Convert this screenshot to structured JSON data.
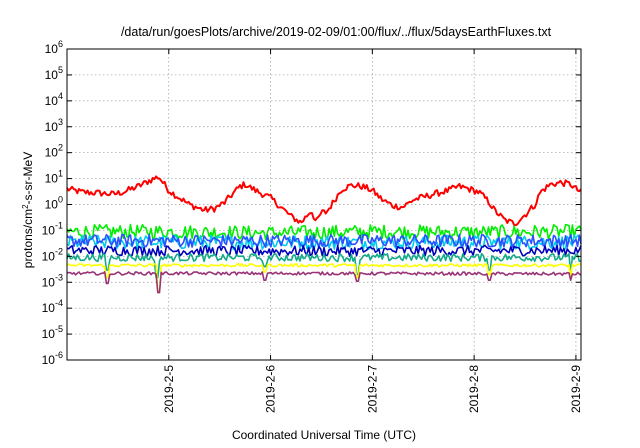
{
  "chart_data": {
    "type": "line",
    "title": "/data/run/goesPlots/archive/2019-02-09/01:00/flux/../flux/5daysEarthFluxes.txt",
    "xlabel": "Coordinated Universal Time (UTC)",
    "ylabel": "protons/cm²-s-sr-MeV",
    "yscale": "log",
    "ylim": [
      1e-06,
      1000000.0
    ],
    "xlim": [
      0,
      5.05
    ],
    "grid": true,
    "yticks": [
      {
        "value": 1e-06,
        "base": "10",
        "exp": "-6"
      },
      {
        "value": 1e-05,
        "base": "10",
        "exp": "-5"
      },
      {
        "value": 0.0001,
        "base": "10",
        "exp": "-4"
      },
      {
        "value": 0.001,
        "base": "10",
        "exp": "-3"
      },
      {
        "value": 0.01,
        "base": "10",
        "exp": "-2"
      },
      {
        "value": 0.1,
        "base": "10",
        "exp": "-1"
      },
      {
        "value": 1,
        "base": "10",
        "exp": "0"
      },
      {
        "value": 10,
        "base": "10",
        "exp": "1"
      },
      {
        "value": 100,
        "base": "10",
        "exp": "2"
      },
      {
        "value": 1000,
        "base": "10",
        "exp": "3"
      },
      {
        "value": 10000.0,
        "base": "10",
        "exp": "4"
      },
      {
        "value": 100000.0,
        "base": "10",
        "exp": "5"
      },
      {
        "value": 1000000.0,
        "base": "10",
        "exp": "6"
      }
    ],
    "xticks": [
      {
        "value": 1.0,
        "label": "2019-2-5"
      },
      {
        "value": 2.0,
        "label": "2019-2-6"
      },
      {
        "value": 3.0,
        "label": "2019-2-7"
      },
      {
        "value": 4.0,
        "label": "2019-2-8"
      },
      {
        "value": 5.0,
        "label": "2019-2-9"
      }
    ],
    "series": [
      {
        "color": "#ff0000",
        "base_points": [
          [
            0,
            4
          ],
          [
            0.15,
            3
          ],
          [
            0.3,
            2.8
          ],
          [
            0.45,
            2.5
          ],
          [
            0.55,
            3
          ],
          [
            0.7,
            5
          ],
          [
            0.8,
            8
          ],
          [
            0.9,
            12
          ],
          [
            1.0,
            3.5
          ],
          [
            1.2,
            1.0
          ],
          [
            1.35,
            0.6
          ],
          [
            1.45,
            0.7
          ],
          [
            1.55,
            1.2
          ],
          [
            1.6,
            2.0
          ],
          [
            1.7,
            5
          ],
          [
            1.75,
            6
          ],
          [
            1.85,
            3.5
          ],
          [
            2.0,
            1.8
          ],
          [
            2.1,
            0.8
          ],
          [
            2.2,
            0.35
          ],
          [
            2.3,
            0.2
          ],
          [
            2.4,
            0.6
          ],
          [
            2.45,
            0.2
          ],
          [
            2.5,
            0.5
          ],
          [
            2.55,
            0.5
          ],
          [
            2.65,
            2
          ],
          [
            2.7,
            4
          ],
          [
            2.8,
            5.5
          ],
          [
            2.9,
            5
          ],
          [
            3.0,
            3.5
          ],
          [
            3.1,
            1.5
          ],
          [
            3.2,
            0.9
          ],
          [
            3.3,
            0.8
          ],
          [
            3.4,
            1.5
          ],
          [
            3.6,
            2.5
          ],
          [
            3.75,
            3.5
          ],
          [
            3.85,
            5
          ],
          [
            3.95,
            4
          ],
          [
            4.05,
            3
          ],
          [
            4.15,
            1.2
          ],
          [
            4.2,
            0.6
          ],
          [
            4.3,
            0.25
          ],
          [
            4.4,
            0.18
          ],
          [
            4.5,
            0.4
          ],
          [
            4.6,
            1.0
          ],
          [
            4.65,
            3
          ],
          [
            4.75,
            6
          ],
          [
            4.85,
            7
          ],
          [
            4.95,
            6
          ],
          [
            5.0,
            4
          ],
          [
            5.05,
            3
          ]
        ],
        "jitter": 0.25,
        "dips": []
      },
      {
        "color": "#00ee00",
        "base_points": [
          [
            0,
            0.09
          ],
          [
            1.0,
            0.09
          ],
          [
            2.0,
            0.08
          ],
          [
            3.0,
            0.09
          ],
          [
            4.0,
            0.085
          ],
          [
            5.05,
            0.09
          ]
        ],
        "jitter": 0.55,
        "dips": []
      },
      {
        "color": "#00ccee",
        "base_points": [
          [
            0,
            0.035
          ],
          [
            2.5,
            0.035
          ],
          [
            5.05,
            0.035
          ]
        ],
        "jitter": 0.55,
        "dips": []
      },
      {
        "color": "#2a50ff",
        "base_points": [
          [
            0,
            0.04
          ],
          [
            2.5,
            0.04
          ],
          [
            5.05,
            0.04
          ]
        ],
        "jitter": 0.5,
        "dips": []
      },
      {
        "color": "#0000bb",
        "base_points": [
          [
            0,
            0.017
          ],
          [
            2.5,
            0.016
          ],
          [
            5.05,
            0.017
          ]
        ],
        "jitter": 0.4,
        "dips": []
      },
      {
        "color": "#11aa88",
        "base_points": [
          [
            0,
            0.009
          ],
          [
            2.5,
            0.009
          ],
          [
            5.05,
            0.009
          ]
        ],
        "jitter": 0.3,
        "dips": [
          [
            0.88,
            0.0015
          ],
          [
            0.4,
            0.003
          ],
          [
            1.95,
            0.004
          ],
          [
            2.85,
            0.002
          ],
          [
            4.15,
            0.003
          ],
          [
            4.95,
            0.002
          ]
        ]
      },
      {
        "color": "#ffff00",
        "base_points": [
          [
            0,
            0.0045
          ],
          [
            2.5,
            0.0045
          ],
          [
            5.05,
            0.0045
          ]
        ],
        "jitter": 0.12,
        "dips": [
          [
            0.4,
            0.0015
          ],
          [
            0.9,
            0.0004
          ],
          [
            1.95,
            0.0025
          ],
          [
            2.85,
            0.0015
          ],
          [
            4.15,
            0.002
          ],
          [
            4.95,
            0.0015
          ]
        ]
      },
      {
        "color": "#993377",
        "base_points": [
          [
            0,
            0.0022
          ],
          [
            2.5,
            0.0022
          ],
          [
            5.05,
            0.0021
          ]
        ],
        "jitter": 0.12,
        "dips": [
          [
            0.4,
            0.0009
          ],
          [
            0.9,
            0.0004
          ],
          [
            1.95,
            0.0012
          ],
          [
            2.85,
            0.0011
          ],
          [
            4.15,
            0.0012
          ],
          [
            4.95,
            0.0012
          ]
        ]
      }
    ]
  }
}
